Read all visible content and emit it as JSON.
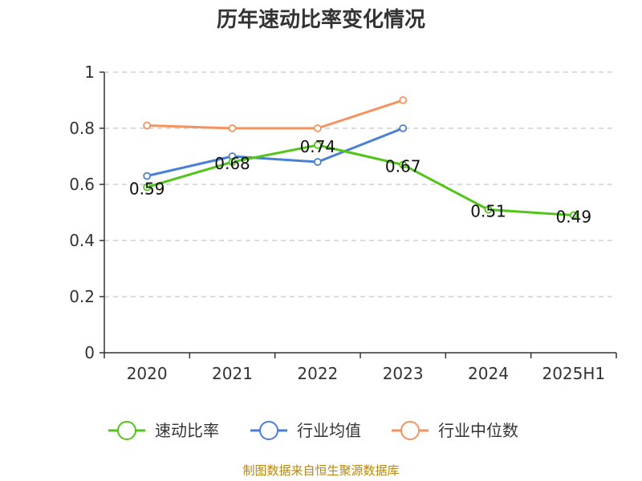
{
  "chart_data": {
    "type": "line",
    "title": "历年速动比率变化情况",
    "categories": [
      "2020",
      "2021",
      "2022",
      "2023",
      "2024",
      "2025H1"
    ],
    "ylim": [
      0,
      1
    ],
    "yticks": [
      "0",
      "0.2",
      "0.4",
      "0.6",
      "0.8",
      "1"
    ],
    "ytick_values": [
      0,
      0.2,
      0.4,
      0.6,
      0.8,
      1.0
    ],
    "grid": true,
    "legend_position": "bottom",
    "series": [
      {
        "name": "速动比率",
        "color": "#52c41a",
        "values": [
          0.59,
          0.68,
          0.74,
          0.67,
          0.51,
          0.49
        ],
        "labels": [
          "0.59",
          "0.68",
          "0.74",
          "0.67",
          "0.51",
          "0.49"
        ]
      },
      {
        "name": "行业均值",
        "color": "#4a7fd6",
        "values": [
          0.63,
          0.7,
          0.68,
          0.8,
          null,
          null
        ]
      },
      {
        "name": "行业中位数",
        "color": "#f5925e",
        "values": [
          0.81,
          0.8,
          0.8,
          0.9,
          null,
          null
        ]
      }
    ]
  },
  "source": "制图数据来自恒生聚源数据库"
}
